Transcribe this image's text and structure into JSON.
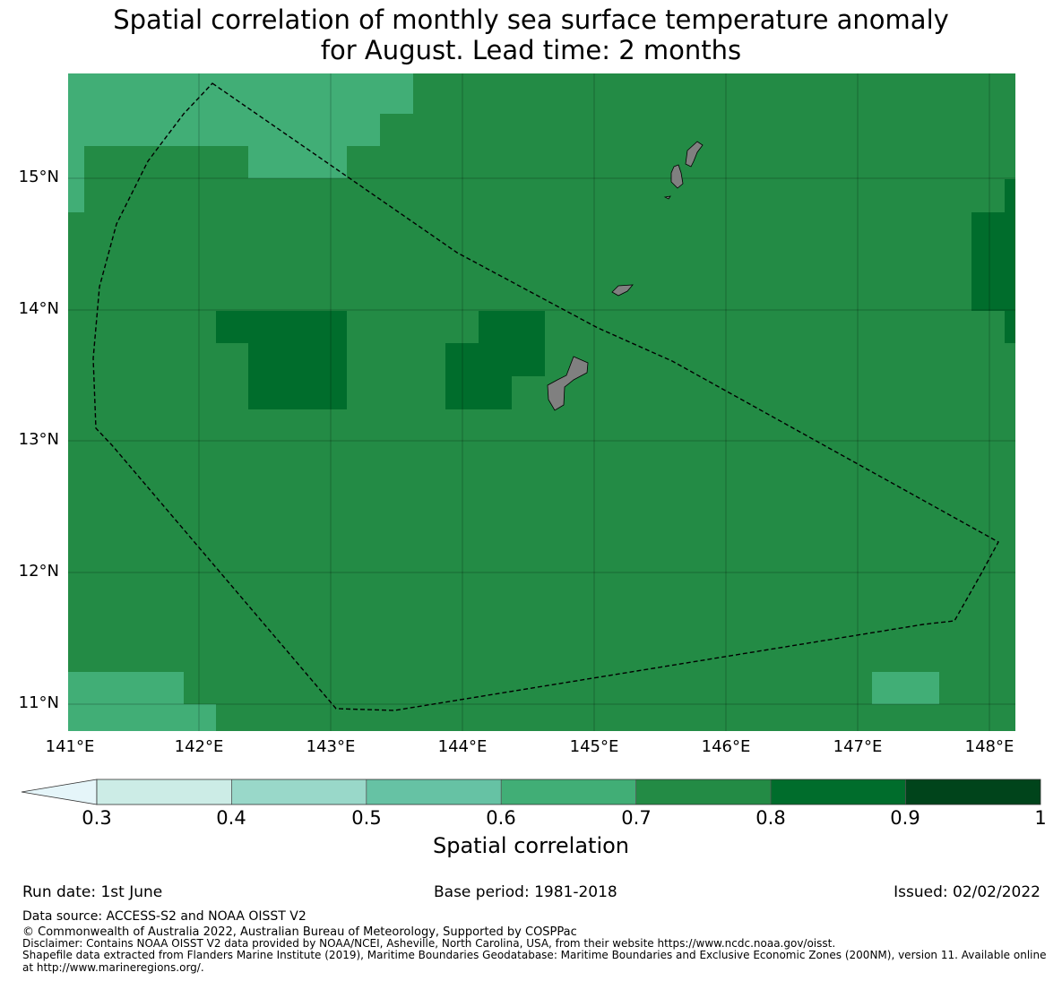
{
  "title": {
    "line1": "Spatial correlation of monthly sea surface temperature anomaly",
    "line2": "for August. Lead time: 2 months"
  },
  "map": {
    "lat_labels": [
      "15°N",
      "14°N",
      "13°N",
      "12°N",
      "11°N"
    ],
    "lon_labels": [
      "141°E",
      "142°E",
      "143°E",
      "144°E",
      "145°E",
      "146°E",
      "147°E",
      "148°E"
    ],
    "extent": {
      "lon_min": 141.0,
      "lon_max": 148.2,
      "lat_min": 10.8,
      "lat_max": 15.8
    },
    "land_color": "#808080",
    "boundary_style": "dashed",
    "dominant_class": "0.7-0.8",
    "regions_0_6_0_7": [
      "northwest corner",
      "southwest corner",
      "southeast near 147.5°E 11°N"
    ],
    "regions_0_8_0_9": [
      "west of Guam near 142.5-143°E 13.5°N",
      "near 144-144.5°E 13.5°N",
      "east edge near 148°E 14.5°N"
    ]
  },
  "colorbar": {
    "label": "Spatial correlation",
    "ticks": [
      "0.3",
      "0.4",
      "0.5",
      "0.6",
      "0.7",
      "0.8",
      "0.9",
      "1"
    ],
    "colors": [
      "#e5f5f9",
      "#ccece6",
      "#99d8c9",
      "#66c2a4",
      "#41ae76",
      "#238b45",
      "#006d2c",
      "#00441b"
    ],
    "extend": "min"
  },
  "footer": {
    "run_date": "Run date: 1st June",
    "base_period": "Base period: 1981-2018",
    "issued": "Issued: 02/02/2022",
    "data_source": "Data source: ACCESS-S2 and NOAA OISST V2",
    "copyright": "© Commonwealth of Australia 2022, Australian Bureau of Meteorology, Supported by COSPPac",
    "disclaimer": "Disclaimer: Contains NOAA OISST V2 data provided by NOAA/NCEI, Asheville, North Carolina, USA, from their website https://www.ncdc.noaa.gov/oisst.",
    "shapefile_1": "Shapefile data extracted from Flanders Marine Institute (2019), Maritime Boundaries Geodatabase: Maritime Boundaries and Exclusive Economic Zones (200NM), version 11. Available online",
    "shapefile_2": "at http://www.marineregions.org/."
  }
}
